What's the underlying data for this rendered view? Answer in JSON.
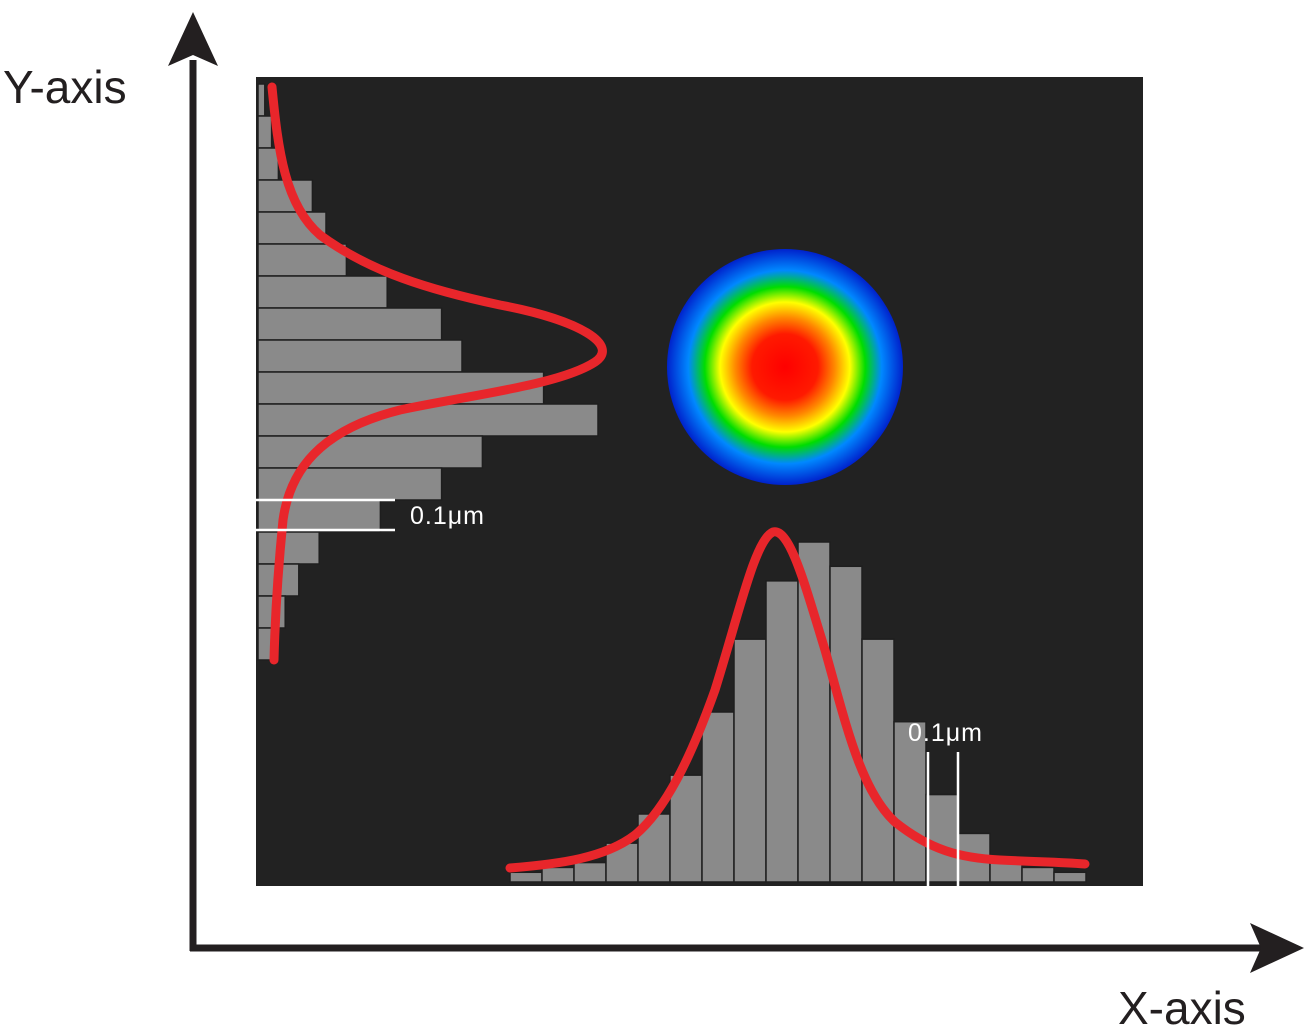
{
  "axes": {
    "y_label": "Y-axis",
    "x_label": "X-axis"
  },
  "scale_bars": {
    "left_label": "0.1μm",
    "bottom_label": "0.1μm"
  },
  "colors": {
    "axis": "#231f20",
    "panel_background": "#222222",
    "histogram_bar": "#8a8a8a",
    "histogram_edge": "#1e1e1e",
    "fit_curve": "#e8262b",
    "scale_bar": "#ffffff",
    "spot_colormap": [
      "#ff0000",
      "#ff8800",
      "#ffff00",
      "#00dd00",
      "#0088ff",
      "#0022cc"
    ]
  },
  "histograms": {
    "y_profile": {
      "orientation": "horizontal",
      "bins": 18,
      "values": [
        1,
        2,
        3,
        8,
        10,
        13,
        19,
        27,
        30,
        42,
        50,
        33,
        27,
        18,
        9,
        6,
        4,
        2
      ]
    },
    "x_profile": {
      "orientation": "vertical",
      "bins": 18,
      "values": [
        2,
        3,
        4,
        8,
        14,
        22,
        35,
        50,
        62,
        70,
        65,
        50,
        33,
        18,
        10,
        5,
        3,
        2
      ]
    }
  }
}
